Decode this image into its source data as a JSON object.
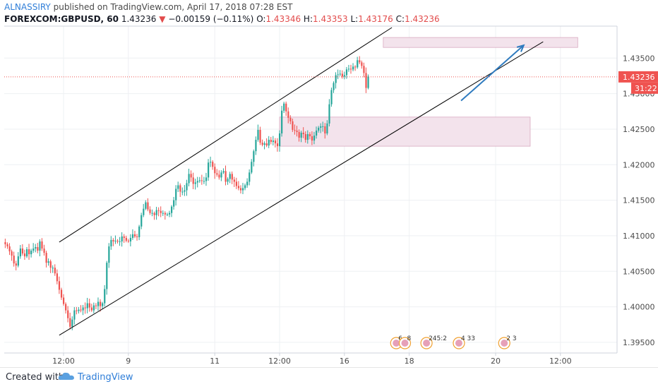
{
  "header": {
    "author": "ALNASSIRY",
    "published": "published on TradingView.com, April 17, 2018 07:28 EST",
    "symbol": "FOREXCOM:GBPUSD, 60",
    "last": "1.43236",
    "change_arrow": "▼",
    "change": "−0.00159 (−0.11%)",
    "o_label": "O:",
    "o": "1.43346",
    "h_label": "H:",
    "h": "1.43353",
    "l_label": "L:",
    "l": "1.43176",
    "c_label": "C:",
    "c": "1.43236"
  },
  "price_tag": {
    "price": "1.43236",
    "countdown": "31:22"
  },
  "footer": {
    "created_with": "Created with",
    "brand": "TradingView"
  },
  "colors": {
    "up": "#26a69a",
    "down": "#ef5350",
    "channel": "#000000",
    "zone": "#f3e3ec",
    "zone_border": "#d8a9c0",
    "arrow": "#2f7bbf",
    "price_line": "#ef5350"
  },
  "chart_data": {
    "type": "candlestick",
    "instrument": "GBPUSD",
    "timeframe": "60",
    "y_range": [
      1.3935,
      1.4395
    ],
    "y_ticks": [
      "1.43500",
      "1.43000",
      "1.42500",
      "1.42000",
      "1.41500",
      "1.41000",
      "1.40500",
      "1.40000",
      "1.39500"
    ],
    "y_tick_values": [
      1.435,
      1.43,
      1.425,
      1.42,
      1.415,
      1.41,
      1.405,
      1.4,
      1.395
    ],
    "x_ticks": [
      "12:00",
      "9",
      "11",
      "12:00",
      "16",
      "18",
      "20",
      "12:00"
    ],
    "x_tick_index": [
      0,
      30,
      70,
      100,
      130,
      160,
      200,
      230
    ],
    "candles_start_index": -27,
    "closes": [
      1.4088,
      1.4085,
      1.4078,
      1.4072,
      1.4061,
      1.4058,
      1.4071,
      1.4082,
      1.4075,
      1.4071,
      1.4081,
      1.4074,
      1.4079,
      1.4082,
      1.4084,
      1.4079,
      1.4092,
      1.4082,
      1.4076,
      1.4062,
      1.4064,
      1.4055,
      1.4055,
      1.4047,
      1.4036,
      1.4024,
      1.4013,
      1.4004,
      1.3995,
      1.3984,
      1.3972,
      1.3982,
      1.3995,
      1.3994,
      1.3996,
      1.3995,
      1.3999,
      1.3998,
      1.4005,
      1.3999,
      1.3995,
      1.4002,
      1.4001,
      1.4007,
      1.4001,
      1.4005,
      1.4025,
      1.4062,
      1.4085,
      1.4094,
      1.4092,
      1.4093,
      1.4092,
      1.4092,
      1.4099,
      1.4097,
      1.4093,
      1.4092,
      1.4097,
      1.4102,
      1.4099,
      1.4098,
      1.4113,
      1.4129,
      1.4138,
      1.4147,
      1.4137,
      1.4132,
      1.4132,
      1.4129,
      1.4136,
      1.4135,
      1.4132,
      1.4132,
      1.413,
      1.413,
      1.4132,
      1.4141,
      1.415,
      1.4166,
      1.4171,
      1.4162,
      1.4162,
      1.4164,
      1.4174,
      1.4187,
      1.4182,
      1.4173,
      1.4175,
      1.4177,
      1.4178,
      1.4177,
      1.4177,
      1.4182,
      1.4203,
      1.4204,
      1.4197,
      1.4188,
      1.4186,
      1.4182,
      1.4189,
      1.4191,
      1.4176,
      1.418,
      1.4187,
      1.4179,
      1.4176,
      1.417,
      1.4167,
      1.4164,
      1.4167,
      1.4171,
      1.4176,
      1.4189,
      1.4204,
      1.4219,
      1.4235,
      1.4249,
      1.4231,
      1.4228,
      1.423,
      1.4227,
      1.4235,
      1.4232,
      1.4234,
      1.423,
      1.4226,
      1.4244,
      1.4276,
      1.4286,
      1.4275,
      1.4266,
      1.4261,
      1.4249,
      1.4248,
      1.4246,
      1.4238,
      1.4245,
      1.4243,
      1.4235,
      1.4243,
      1.424,
      1.4234,
      1.4241,
      1.4248,
      1.4252,
      1.4254,
      1.4254,
      1.4244,
      1.4258,
      1.4285,
      1.4305,
      1.4315,
      1.4326,
      1.4327,
      1.4328,
      1.4324,
      1.4326,
      1.4334,
      1.4335,
      1.4334,
      1.4338,
      1.4337,
      1.4347,
      1.4344,
      1.4339,
      1.4329,
      1.4308,
      1.4324
    ]
  },
  "annotations": {
    "channel_upper": [
      [
        -2,
        1.4091
      ],
      [
        152,
        1.4393
      ]
    ],
    "channel_lower": [
      [
        -2,
        1.396
      ],
      [
        222,
        1.4373
      ]
    ],
    "zone_demand": {
      "x": [
        100,
        216
      ],
      "y": [
        1.4226,
        1.4267
      ]
    },
    "zone_supply": {
      "x": [
        148,
        238
      ],
      "y": [
        1.4365,
        1.4379
      ]
    },
    "arrow": [
      [
        184,
        1.429
      ],
      [
        213,
        1.4368
      ]
    ],
    "events": [
      {
        "index": 154,
        "label": "6"
      },
      {
        "index": 158,
        "label": "8"
      },
      {
        "index": 168,
        "label": "245:2"
      },
      {
        "index": 183,
        "label": "4 33"
      },
      {
        "index": 204,
        "label": "2 3"
      }
    ]
  }
}
